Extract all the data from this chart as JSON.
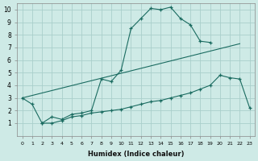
{
  "background_color": "#ceeae6",
  "grid_color": "#aacfcb",
  "line_color": "#1a6b60",
  "xlabel": "Humidex (Indice chaleur)",
  "xlim": [
    -0.5,
    23.5
  ],
  "ylim": [
    0,
    10.5
  ],
  "xticks": [
    0,
    1,
    2,
    3,
    4,
    5,
    6,
    7,
    8,
    9,
    10,
    11,
    12,
    13,
    14,
    15,
    16,
    17,
    18,
    19,
    20,
    21,
    22,
    23
  ],
  "yticks": [
    1,
    2,
    3,
    4,
    5,
    6,
    7,
    8,
    9,
    10
  ],
  "curve1_x": [
    0,
    1,
    2,
    3,
    4,
    5,
    6,
    7,
    8,
    9,
    10,
    11,
    12,
    13,
    14,
    15,
    16,
    17,
    18,
    19
  ],
  "curve1_y": [
    3.0,
    2.5,
    1.0,
    1.5,
    1.3,
    1.7,
    1.8,
    2.0,
    4.5,
    4.3,
    5.2,
    8.5,
    9.3,
    10.1,
    10.0,
    10.2,
    9.3,
    8.8,
    7.5,
    7.4
  ],
  "curve2_x": [
    0,
    22
  ],
  "curve2_y": [
    3.0,
    7.3
  ],
  "curve3_x": [
    2,
    3,
    4,
    5,
    6,
    7,
    8,
    9,
    10,
    11,
    12,
    13,
    14,
    15,
    16,
    17,
    18,
    19,
    20,
    21,
    22,
    23
  ],
  "curve3_y": [
    1.0,
    1.0,
    1.2,
    1.5,
    1.6,
    1.8,
    1.9,
    2.0,
    2.1,
    2.3,
    2.5,
    2.7,
    2.8,
    3.0,
    3.2,
    3.4,
    3.7,
    4.0,
    4.8,
    4.6,
    4.5,
    2.2
  ]
}
